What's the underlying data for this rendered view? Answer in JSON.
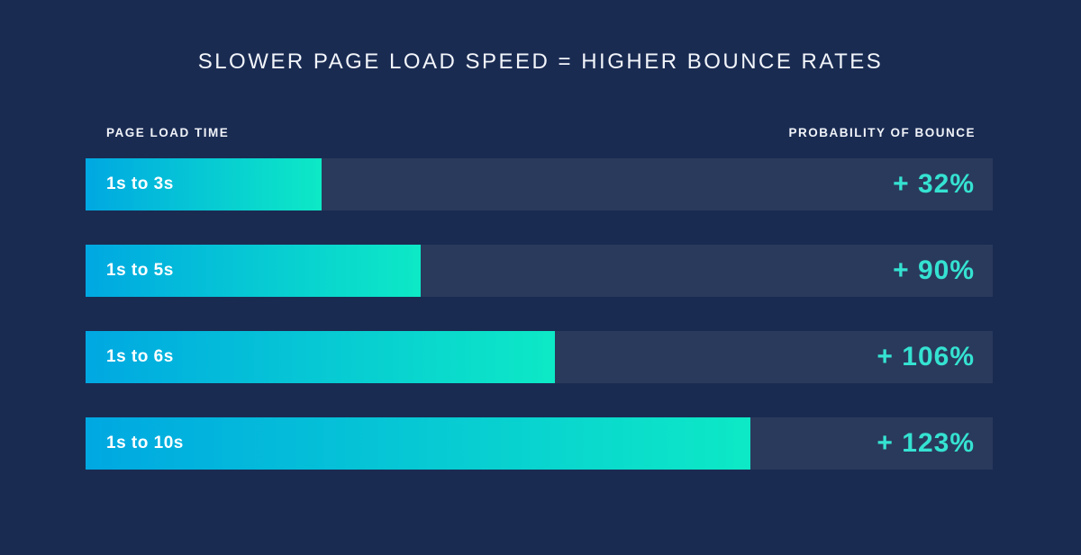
{
  "chart_data": {
    "type": "bar",
    "title": "SLOWER PAGE LOAD SPEED = HIGHER BOUNCE RATES",
    "left_header": "PAGE LOAD TIME",
    "right_header": "PROBABILITY OF BOUNCE",
    "categories": [
      "1s to 3s",
      "1s to 5s",
      "1s to 6s",
      "1s to 10s"
    ],
    "values": [
      32,
      90,
      106,
      123
    ],
    "value_labels": [
      "+ 32%",
      "+ 90%",
      "+ 106%",
      "+ 123%"
    ],
    "bar_width_pct": [
      26.0,
      36.9,
      51.7,
      73.3
    ],
    "orientation": "horizontal",
    "grid": false,
    "legend": false,
    "colors": {
      "background": "#1a2b52",
      "track": "#2a3a5c",
      "gradient_start": "#00a8e2",
      "gradient_end": "#0de9c6",
      "value_text": "#35e2d2",
      "title_text": "#f2f5fa",
      "bar_label_text": "#ffffff"
    }
  }
}
